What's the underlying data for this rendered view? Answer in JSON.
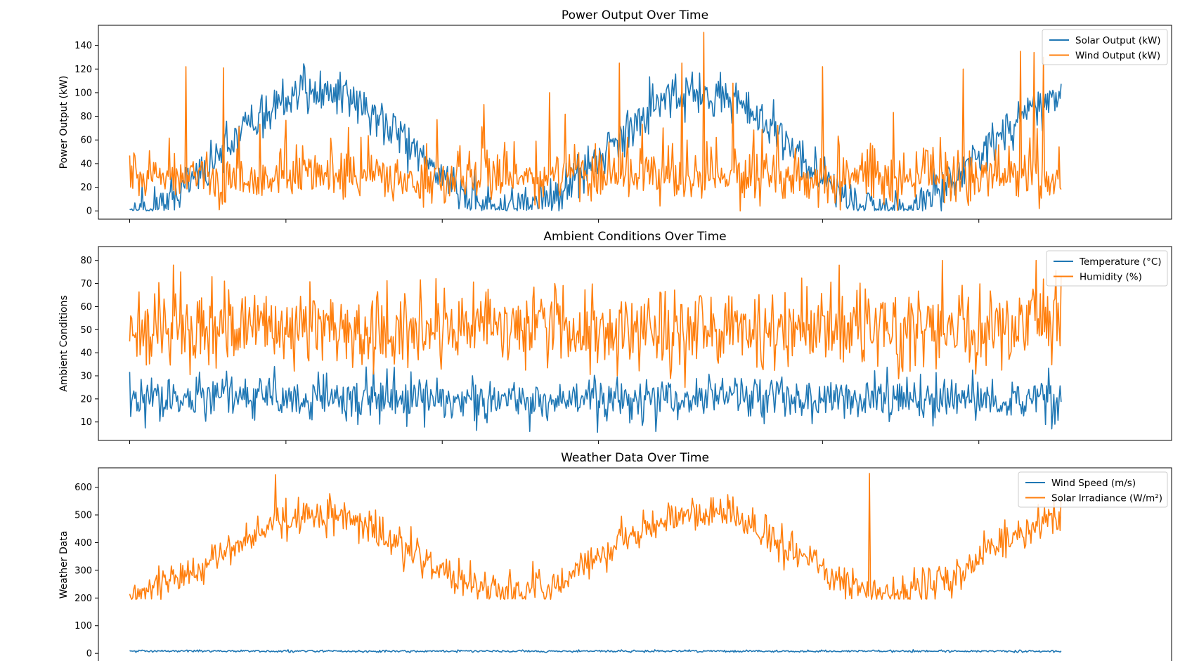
{
  "colors": {
    "series1": "#1f77b4",
    "series2": "#ff7f0e"
  },
  "chart_data": [
    {
      "type": "line",
      "title": "Power Output Over Time",
      "ylabel": "Power Output (kW)",
      "xlabel": "",
      "ylim": [
        -7,
        157
      ],
      "yticks": [
        0,
        20,
        40,
        60,
        80,
        100,
        120,
        140
      ],
      "xlim": [
        -30,
        1000
      ],
      "xticks": [
        0,
        150,
        300,
        450,
        665,
        815
      ],
      "xtick_labels_visible": false,
      "legend": "top-right",
      "grid": false,
      "n_points": 895,
      "series": [
        {
          "name": "Solar Output (kW)",
          "color": "#1f77b4",
          "model": {
            "kind": "periodic",
            "offset": 50,
            "amp": 50,
            "period": 365,
            "phase": 91,
            "noise": 9,
            "min": 0,
            "spike_prob": 0.05,
            "spike": 18,
            "seed": 11
          }
        },
        {
          "name": "Wind Output (kW)",
          "color": "#ff7f0e",
          "model": {
            "kind": "noisy",
            "mean": 27,
            "noise": 10,
            "min": 0,
            "spike_prob": 0.11,
            "spike": 45,
            "seed": 23
          },
          "peaks": [
            [
              54,
              122
            ],
            [
              90,
              121
            ],
            [
              340,
              90
            ],
            [
              403,
              100
            ],
            [
              470,
              125
            ],
            [
              530,
              125
            ],
            [
              551,
              151
            ],
            [
              579,
              108
            ],
            [
              665,
              122
            ],
            [
              800,
              120
            ],
            [
              855,
              135
            ],
            [
              868,
              134
            ],
            [
              877,
              130
            ]
          ]
        }
      ]
    },
    {
      "type": "line",
      "title": "Ambient Conditions Over Time",
      "ylabel": "Ambient Conditions",
      "xlabel": "",
      "ylim": [
        2,
        86
      ],
      "yticks": [
        10,
        20,
        30,
        40,
        50,
        60,
        70,
        80
      ],
      "xlim": [
        -30,
        1000
      ],
      "xticks": [
        0,
        150,
        300,
        450,
        665,
        815
      ],
      "xtick_labels_visible": false,
      "legend": "top-right",
      "grid": false,
      "n_points": 895,
      "series": [
        {
          "name": "Temperature (°C)",
          "color": "#1f77b4",
          "model": {
            "kind": "noisy",
            "mean": 20,
            "noise": 5,
            "min": 5,
            "spike_prob": 0.05,
            "spike": 8,
            "seed": 37
          }
        },
        {
          "name": "Humidity (%)",
          "color": "#ff7f0e",
          "model": {
            "kind": "noisy",
            "mean": 50,
            "noise": 9,
            "min": 15,
            "spike_prob": 0.08,
            "spike": 12,
            "seed": 41
          },
          "peaks": [
            [
              42,
              78
            ],
            [
              780,
              80
            ],
            [
              870,
              80
            ]
          ]
        }
      ]
    },
    {
      "type": "line",
      "title": "Weather Data Over Time",
      "ylabel": "Weather Data",
      "xlabel": "",
      "ylim": [
        -30,
        670
      ],
      "yticks": [
        0,
        100,
        200,
        300,
        400,
        500,
        600
      ],
      "xlim": [
        -30,
        1000
      ],
      "xticks": [
        0,
        150,
        300,
        450,
        665,
        815
      ],
      "xtick_labels_visible": false,
      "legend": "top-right",
      "grid": false,
      "n_points": 895,
      "series": [
        {
          "name": "Wind Speed (m/s)",
          "color": "#1f77b4",
          "model": {
            "kind": "noisy",
            "mean": 8,
            "noise": 2,
            "min": 2,
            "spike_prob": 0.0,
            "spike": 0,
            "seed": 53
          }
        },
        {
          "name": "Solar Irradiance (W/m²)",
          "color": "#ff7f0e",
          "model": {
            "kind": "periodic",
            "offset": 360,
            "amp": 140,
            "period": 365,
            "phase": 91,
            "noise": 32,
            "min": 195,
            "spike_prob": 0.04,
            "spike": 60,
            "seed": 67
          },
          "peaks": [
            [
              140,
              645
            ],
            [
              710,
              650
            ]
          ]
        }
      ]
    }
  ]
}
